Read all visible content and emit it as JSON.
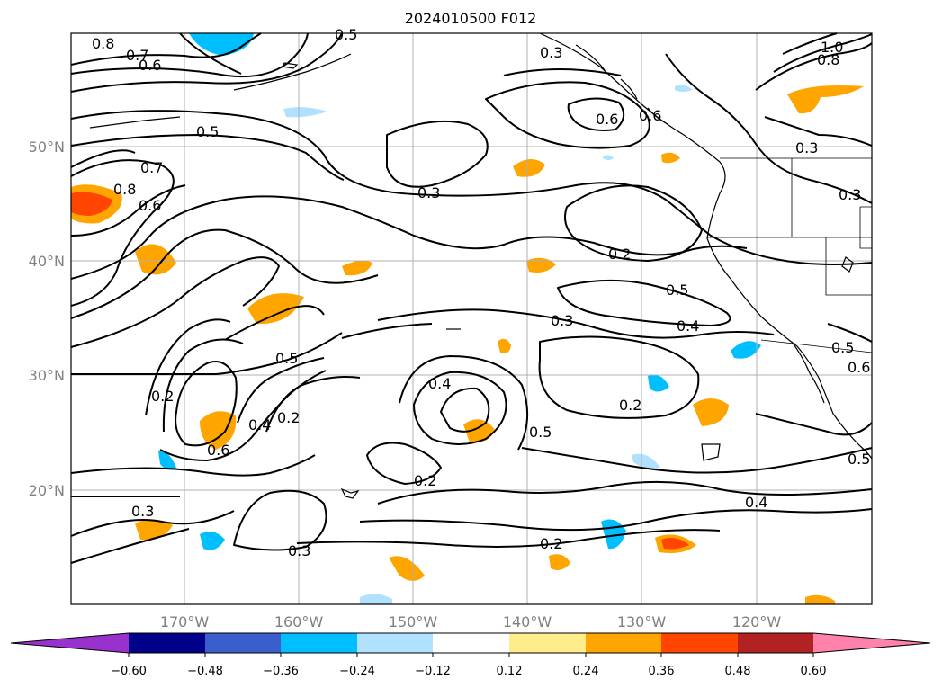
{
  "title": "2024010500 F012",
  "map": {
    "latitude_labels": [
      "50°N",
      "40°N",
      "30°N",
      "20°N"
    ],
    "longitude_labels": [
      "170°W",
      "160°W",
      "150°W",
      "140°W",
      "130°W",
      "120°W"
    ]
  },
  "colorbar": {
    "tick_labels": [
      "−0.60",
      "−0.48",
      "−0.36",
      "−0.24",
      "−0.12",
      "0.12",
      "0.24",
      "0.36",
      "0.48",
      "0.60"
    ],
    "colors": [
      "#9932cc",
      "#00008b",
      "#3a5fcd",
      "#00bfff",
      "#b0e2ff",
      "#ffffff",
      "#ffec8b",
      "#ffa500",
      "#ff4500",
      "#b22222",
      "#ff82ab"
    ]
  },
  "contour_labels": [
    "0.8",
    "0.7",
    "0.6",
    "0.5",
    "0.3",
    "0.6",
    "0.7",
    "0.8",
    "0.6",
    "0.5",
    "0.3",
    "0.6",
    "0.3",
    "1.0",
    "0.8",
    "0.2",
    "0.5",
    "0.3",
    "0.4",
    "0.5",
    "0.2",
    "0.6",
    "0.4",
    "0.2",
    "0.4",
    "0.5",
    "0.2",
    "0.3",
    "0.4",
    "0.2",
    "0.3",
    "0.2",
    "0.5",
    "0.5",
    "0.6",
    "0.3"
  ]
}
